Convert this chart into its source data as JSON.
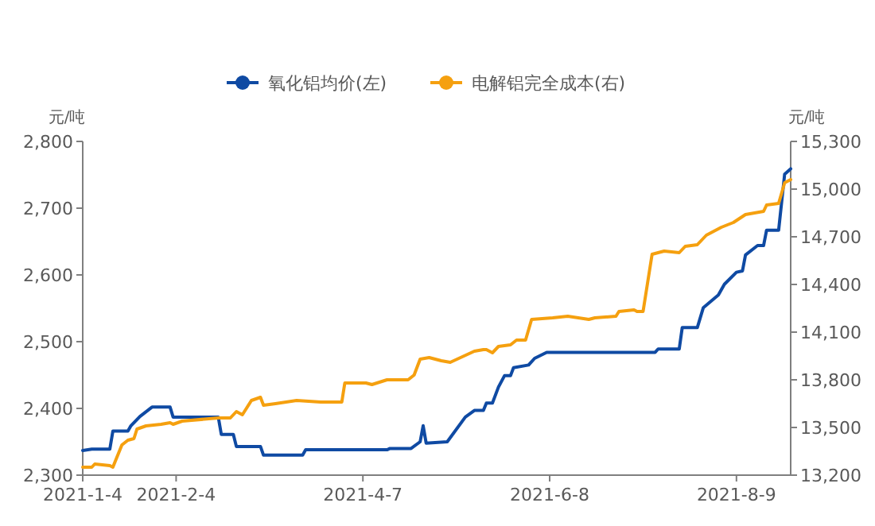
{
  "chart_data": {
    "type": "line",
    "ylabel": "元/吨",
    "y2label": "元/吨",
    "legend": "top",
    "xlim": [
      "2021-01-04",
      "2021-08-27"
    ],
    "xticks": [
      {
        "value": "2021-01-04",
        "label": "2021-1-4"
      },
      {
        "value": "2021-02-04",
        "label": "2021-2-4"
      },
      {
        "value": "2021-04-07",
        "label": "2021-4-7"
      },
      {
        "value": "2021-06-08",
        "label": "2021-6-8"
      },
      {
        "value": "2021-08-09",
        "label": "2021-8-9"
      }
    ],
    "ylim": [
      2300,
      2800
    ],
    "yticks": [
      {
        "value": 2300,
        "label": "2,300"
      },
      {
        "value": 2400,
        "label": "2,400"
      },
      {
        "value": 2500,
        "label": "2,500"
      },
      {
        "value": 2600,
        "label": "2,600"
      },
      {
        "value": 2700,
        "label": "2,700"
      },
      {
        "value": 2800,
        "label": "2,800"
      }
    ],
    "y2lim": [
      13200,
      15300
    ],
    "y2ticks": [
      {
        "value": 13200,
        "label": "13,200"
      },
      {
        "value": 13500,
        "label": "13,500"
      },
      {
        "value": 13800,
        "label": "13,800"
      },
      {
        "value": 14100,
        "label": "14,100"
      },
      {
        "value": 14400,
        "label": "14,400"
      },
      {
        "value": 14700,
        "label": "14,700"
      },
      {
        "value": 15000,
        "label": "15,000"
      },
      {
        "value": 15300,
        "label": "15,300"
      }
    ],
    "series": [
      {
        "name": "氧化铝均价(左)",
        "color": "#0f4aa3",
        "x": [
          "2021-01-04",
          "2021-01-07",
          "2021-01-13",
          "2021-01-14",
          "2021-01-19",
          "2021-01-20",
          "2021-01-23",
          "2021-01-27",
          "2021-02-02",
          "2021-02-03",
          "2021-02-18",
          "2021-02-19",
          "2021-02-23",
          "2021-02-24",
          "2021-03-04",
          "2021-03-05",
          "2021-03-18",
          "2021-03-19",
          "2021-04-15",
          "2021-04-16",
          "2021-04-23",
          "2021-04-26",
          "2021-04-27",
          "2021-04-28",
          "2021-05-05",
          "2021-05-11",
          "2021-05-14",
          "2021-05-17",
          "2021-05-18",
          "2021-05-20",
          "2021-05-22",
          "2021-05-24",
          "2021-05-26",
          "2021-05-27",
          "2021-06-01",
          "2021-06-03",
          "2021-06-07",
          "2021-07-13",
          "2021-07-14",
          "2021-07-21",
          "2021-07-22",
          "2021-07-27",
          "2021-07-29",
          "2021-08-03",
          "2021-08-05",
          "2021-08-09",
          "2021-08-11",
          "2021-08-12",
          "2021-08-16",
          "2021-08-18",
          "2021-08-19",
          "2021-08-23",
          "2021-08-25",
          "2021-08-27"
        ],
        "values": [
          2337,
          2339,
          2339,
          2366,
          2366,
          2374,
          2388,
          2402,
          2402,
          2387,
          2387,
          2361,
          2361,
          2343,
          2343,
          2330,
          2330,
          2338,
          2338,
          2340,
          2340,
          2350,
          2374,
          2348,
          2350,
          2387,
          2397,
          2397,
          2408,
          2408,
          2432,
          2449,
          2449,
          2461,
          2465,
          2475,
          2484,
          2484,
          2489,
          2489,
          2521,
          2521,
          2551,
          2570,
          2586,
          2604,
          2606,
          2630,
          2644,
          2644,
          2667,
          2667,
          2751,
          2759
        ]
      },
      {
        "name": "电解铝完全成本(右)",
        "color": "#f5a00f",
        "axis": "y2",
        "x": [
          "2021-01-04",
          "2021-01-07",
          "2021-01-08",
          "2021-01-13",
          "2021-01-14",
          "2021-01-17",
          "2021-01-19",
          "2021-01-21",
          "2021-01-22",
          "2021-01-25",
          "2021-01-30",
          "2021-02-02",
          "2021-02-03",
          "2021-02-06",
          "2021-02-18",
          "2021-02-22",
          "2021-02-24",
          "2021-02-26",
          "2021-03-01",
          "2021-03-04",
          "2021-03-05",
          "2021-03-09",
          "2021-03-16",
          "2021-03-24",
          "2021-03-31",
          "2021-04-01",
          "2021-04-08",
          "2021-04-10",
          "2021-04-15",
          "2021-04-22",
          "2021-04-24",
          "2021-04-26",
          "2021-04-29",
          "2021-05-03",
          "2021-05-06",
          "2021-05-14",
          "2021-05-17",
          "2021-05-18",
          "2021-05-20",
          "2021-05-22",
          "2021-05-26",
          "2021-05-28",
          "2021-05-31",
          "2021-06-02",
          "2021-06-09",
          "2021-06-14",
          "2021-06-21",
          "2021-06-23",
          "2021-06-30",
          "2021-07-01",
          "2021-07-06",
          "2021-07-07",
          "2021-07-09",
          "2021-07-12",
          "2021-07-16",
          "2021-07-21",
          "2021-07-23",
          "2021-07-27",
          "2021-07-30",
          "2021-08-04",
          "2021-08-08",
          "2021-08-12",
          "2021-08-18",
          "2021-08-19",
          "2021-08-23",
          "2021-08-25",
          "2021-08-27"
        ],
        "values": [
          13250,
          13250,
          13270,
          13260,
          13250,
          13390,
          13420,
          13430,
          13490,
          13510,
          13520,
          13530,
          13520,
          13540,
          13560,
          13560,
          13600,
          13580,
          13670,
          13690,
          13640,
          13650,
          13670,
          13660,
          13660,
          13780,
          13780,
          13770,
          13800,
          13800,
          13830,
          13930,
          13940,
          13920,
          13910,
          13980,
          13990,
          13990,
          13970,
          14010,
          14020,
          14050,
          14050,
          14180,
          14190,
          14200,
          14180,
          14190,
          14200,
          14230,
          14240,
          14230,
          14230,
          14590,
          14610,
          14600,
          14640,
          14650,
          14710,
          14760,
          14790,
          14840,
          14860,
          14900,
          14910,
          15040,
          15060
        ]
      }
    ]
  }
}
